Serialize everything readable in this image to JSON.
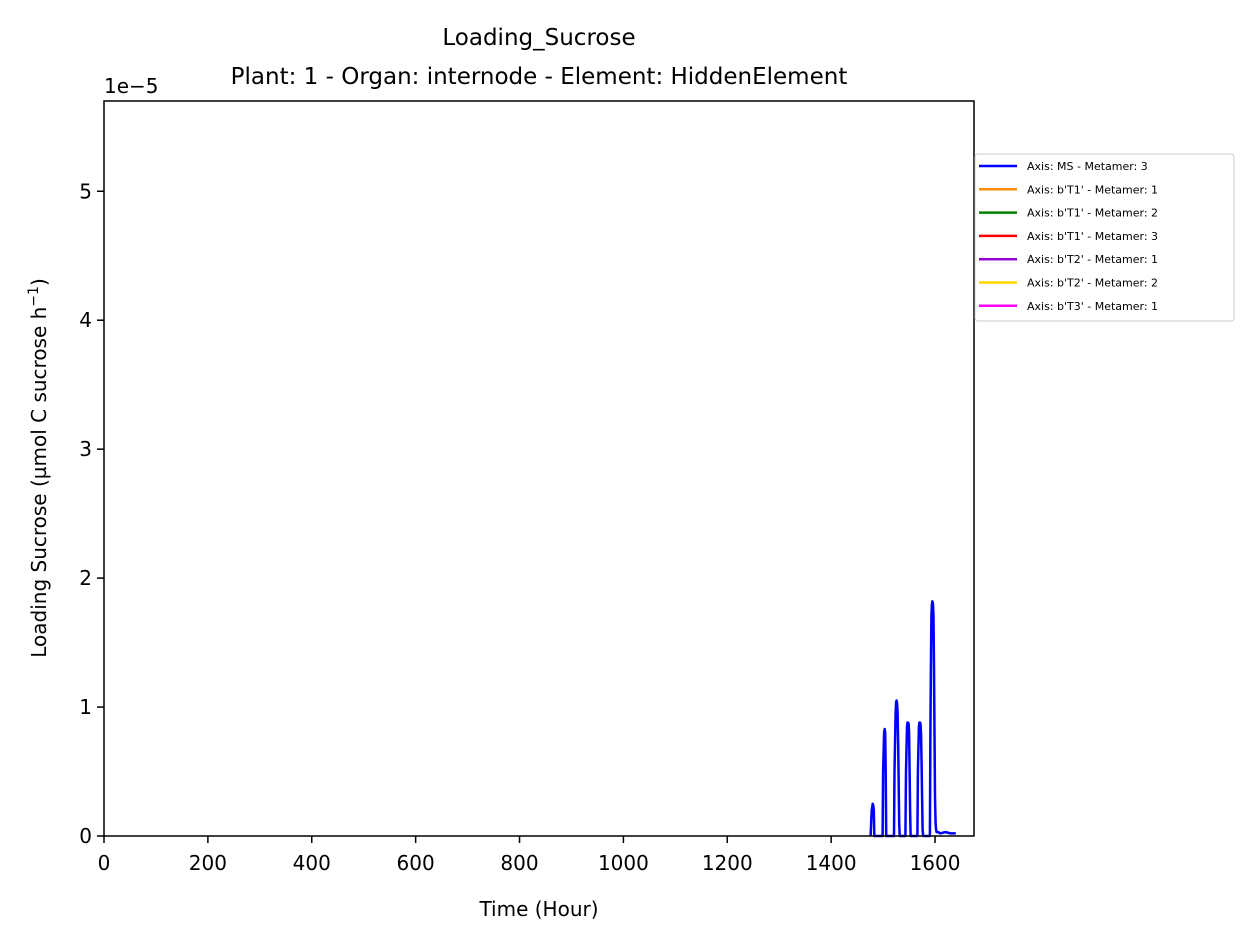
{
  "chart_data": {
    "type": "line",
    "title": "Loading_Sucrose",
    "subtitle": "Plant: 1 - Organ: internode - Element: HiddenElement",
    "xlabel": "Time (Hour)",
    "ylabel_main": "Loading Sucrose (µmol C sucrose h",
    "ylabel_sup": "−1",
    "ylabel_close": ")",
    "y_offset_text": "1e−5",
    "xlim": [
      0,
      1675
    ],
    "ylim": [
      0,
      5.7
    ],
    "x_ticks": [
      0,
      200,
      400,
      600,
      800,
      1000,
      1200,
      1400,
      1600
    ],
    "y_ticks": [
      0,
      1,
      2,
      3,
      4,
      5
    ],
    "y_scale_note": "values ×1e−5",
    "grid": false,
    "legend_position": "outside-right-top",
    "series": [
      {
        "name": "Axis: MS - Metamer: 3",
        "color": "#0000ff",
        "x": [
          1476,
          1478,
          1480,
          1481,
          1482,
          1483,
          1488,
          1499,
          1500,
          1502,
          1503,
          1504,
          1505,
          1506,
          1511,
          1521,
          1522,
          1524,
          1525,
          1526,
          1527,
          1528,
          1529,
          1530,
          1531,
          1532,
          1533,
          1543,
          1544,
          1546,
          1547,
          1548,
          1549,
          1550,
          1551,
          1552,
          1553,
          1554,
          1556,
          1566,
          1567,
          1569,
          1570,
          1571,
          1572,
          1573,
          1574,
          1575,
          1576,
          1577,
          1590,
          1591,
          1592,
          1593,
          1594,
          1595,
          1596,
          1597,
          1598,
          1599,
          1600,
          1601,
          1602,
          1603,
          1606,
          1610,
          1620,
          1630,
          1640
        ],
        "y": [
          0,
          0.2,
          0.25,
          0.24,
          0.2,
          0,
          0,
          0,
          0.5,
          0.8,
          0.83,
          0.8,
          0.5,
          0,
          0,
          0,
          0.5,
          0.95,
          1.04,
          1.05,
          1.03,
          0.95,
          0.7,
          0.4,
          0.1,
          0,
          0,
          0,
          0.5,
          0.85,
          0.88,
          0.88,
          0.87,
          0.8,
          0.5,
          0.2,
          0,
          0,
          0,
          0,
          0.5,
          0.85,
          0.88,
          0.88,
          0.87,
          0.8,
          0.6,
          0.3,
          0.05,
          0,
          0,
          0.8,
          1.3,
          1.7,
          1.8,
          1.82,
          1.8,
          1.7,
          1.3,
          0.8,
          0.3,
          0.1,
          0.05,
          0.03,
          0.03,
          0.02,
          0.03,
          0.02,
          0.02
        ]
      },
      {
        "name": "Axis: b'T1' - Metamer: 1",
        "color": "#ff8c00",
        "x": [],
        "y": []
      },
      {
        "name": "Axis: b'T1' - Metamer: 2",
        "color": "#008000",
        "x": [],
        "y": []
      },
      {
        "name": "Axis: b'T1' - Metamer: 3",
        "color": "#ff0000",
        "x": [],
        "y": []
      },
      {
        "name": "Axis: b'T2' - Metamer: 1",
        "color": "#9400d3",
        "x": [],
        "y": []
      },
      {
        "name": "Axis: b'T2' - Metamer: 2",
        "color": "#ffd700",
        "x": [],
        "y": []
      },
      {
        "name": "Axis: b'T3' - Metamer: 1",
        "color": "#ff00ff",
        "x": [],
        "y": []
      }
    ]
  }
}
